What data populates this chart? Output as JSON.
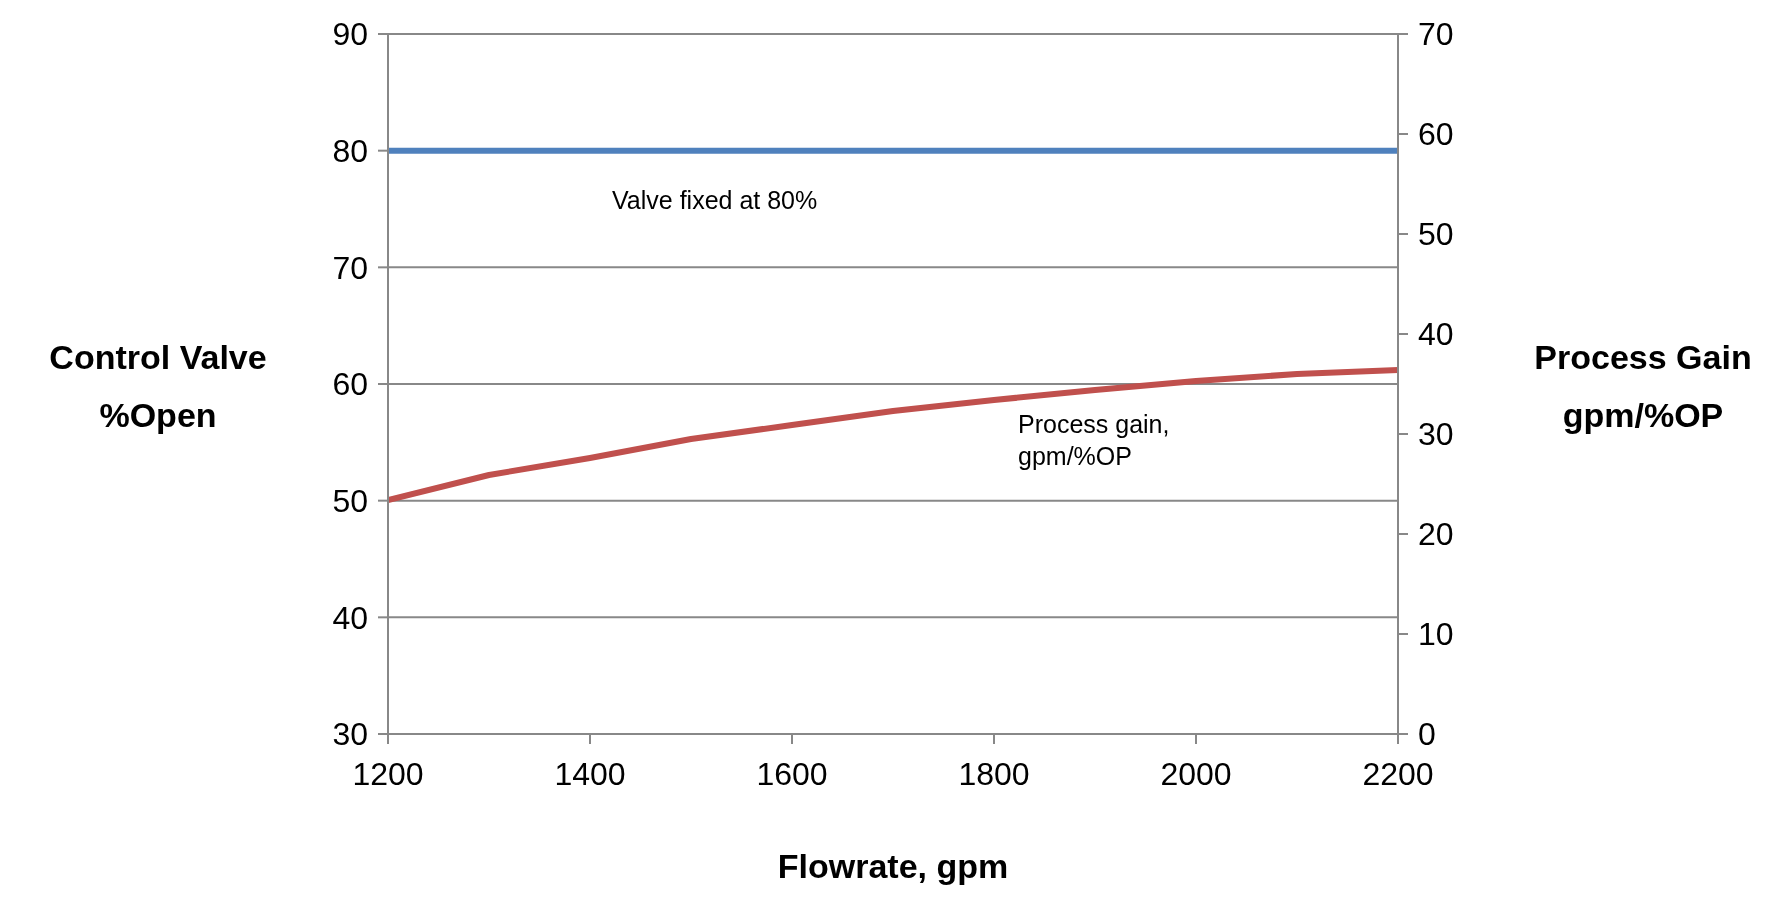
{
  "chart_data": {
    "type": "line",
    "xlabel": "Flowrate, gpm",
    "ylabel": "Control Valve %Open",
    "y2label": "Process Gain gpm/%OP",
    "xlim": [
      1200,
      2200
    ],
    "xticks": [
      1200,
      1400,
      1600,
      1800,
      2000,
      2200
    ],
    "ylim": [
      30,
      90
    ],
    "yticks": [
      30,
      40,
      50,
      60,
      70,
      80,
      90
    ],
    "y2lim": [
      0,
      70
    ],
    "y2ticks": [
      0,
      10,
      20,
      30,
      40,
      50,
      60,
      70
    ],
    "grid": "y",
    "legend": false,
    "marker": "none",
    "line_style": "solid",
    "series": [
      {
        "color": "#4f81bd",
        "x": [
          1200,
          2200
        ],
        "values": [
          80,
          80
        ]
      },
      {
        "color": "#c0504d",
        "axis": "y2",
        "x": [
          1200,
          1300,
          1400,
          1500,
          1600,
          1700,
          1800,
          1900,
          2000,
          2100,
          2200
        ],
        "values": [
          23.4,
          25.9,
          27.6,
          29.5,
          30.9,
          32.3,
          33.4,
          34.4,
          35.3,
          36.0,
          36.4
        ]
      }
    ],
    "annotations": [
      "Valve fixed at 80%",
      "Process gain, gpm/%OP"
    ]
  }
}
